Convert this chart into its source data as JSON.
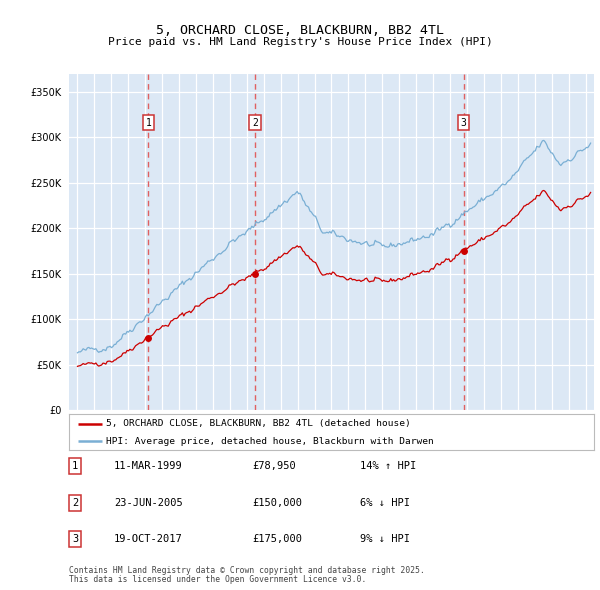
{
  "title": "5, ORCHARD CLOSE, BLACKBURN, BB2 4TL",
  "subtitle": "Price paid vs. HM Land Registry's House Price Index (HPI)",
  "legend_label_red": "5, ORCHARD CLOSE, BLACKBURN, BB2 4TL (detached house)",
  "legend_label_blue": "HPI: Average price, detached house, Blackburn with Darwen",
  "footer_line1": "Contains HM Land Registry data © Crown copyright and database right 2025.",
  "footer_line2": "This data is licensed under the Open Government Licence v3.0.",
  "transactions": [
    {
      "num": 1,
      "date": "11-MAR-1999",
      "price": "£78,950",
      "hpi": "14% ↑ HPI",
      "year": 1999.19,
      "value": 78950
    },
    {
      "num": 2,
      "date": "23-JUN-2005",
      "price": "£150,000",
      "hpi": "6% ↓ HPI",
      "year": 2005.48,
      "value": 150000
    },
    {
      "num": 3,
      "date": "19-OCT-2017",
      "price": "£175,000",
      "hpi": "9% ↓ HPI",
      "year": 2017.8,
      "value": 175000
    }
  ],
  "ylim": [
    0,
    370000
  ],
  "xlim_start": 1994.5,
  "xlim_end": 2025.5,
  "yticks": [
    0,
    50000,
    100000,
    150000,
    200000,
    250000,
    300000,
    350000
  ],
  "xticks": [
    1995,
    1996,
    1997,
    1998,
    1999,
    2000,
    2001,
    2002,
    2003,
    2004,
    2005,
    2006,
    2007,
    2008,
    2009,
    2010,
    2011,
    2012,
    2013,
    2014,
    2015,
    2016,
    2017,
    2018,
    2019,
    2020,
    2021,
    2022,
    2023,
    2024,
    2025
  ],
  "bg_color": "#dce8f5",
  "grid_color": "#ffffff",
  "red_color": "#cc0000",
  "blue_color": "#7aafd4",
  "vline_color": "#e06060"
}
